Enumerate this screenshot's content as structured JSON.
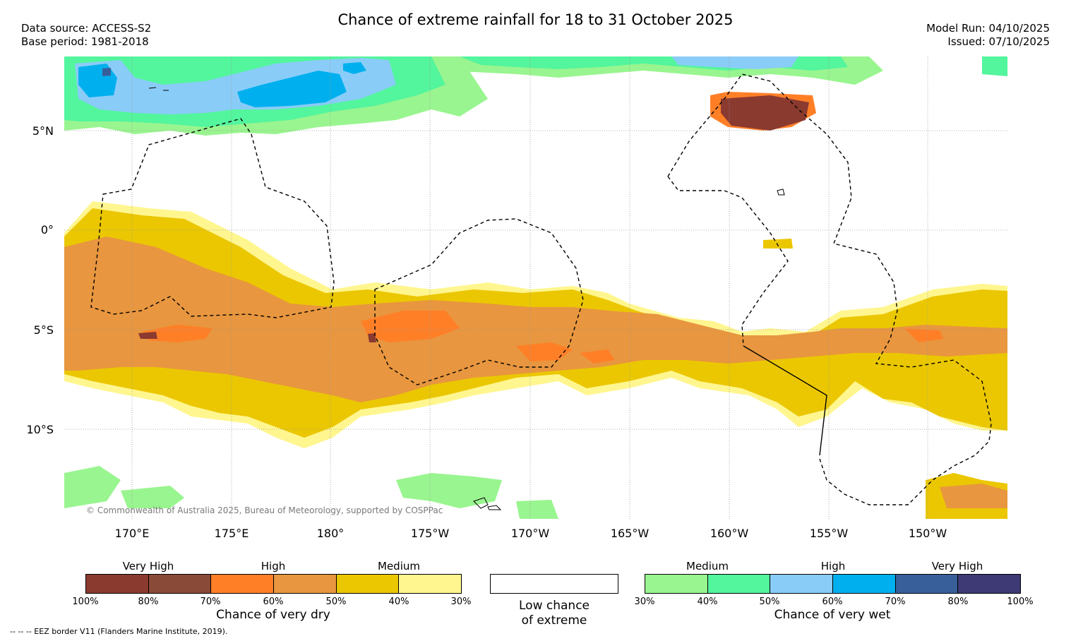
{
  "header": {
    "title": "Chance of extreme rainfall for 18 to 31 October 2025",
    "data_source": "Data source: ACCESS-S2",
    "base_period": "Base period: 1981-2018",
    "model_run": "Model Run: 04/10/2025",
    "issued": "Issued: 07/10/2025"
  },
  "map": {
    "lat_labels": [
      "5°N",
      "0°",
      "5°S",
      "10°S"
    ],
    "lon_labels": [
      "170°E",
      "175°E",
      "180°",
      "175°W",
      "170°W",
      "165°W",
      "160°W",
      "155°W",
      "150°W"
    ],
    "copyright": "© Commonwealth of Australia 2025, Bureau of Meteorology, supported by COSPPac",
    "eez_note": "--  --  -- EEZ border V11 (Flanders Marine Institute, 2019)."
  },
  "legend": {
    "dry": {
      "levels": [
        "Very High",
        "High",
        "Medium"
      ],
      "ticks": [
        "100%",
        "80%",
        "70%",
        "60%",
        "50%",
        "40%",
        "30%"
      ],
      "colors": [
        "#8b3a30",
        "#8a4a38",
        "#ff7f27",
        "#e8963f",
        "#ebc701",
        "#fff68f"
      ],
      "caption": "Chance of very dry"
    },
    "low": {
      "caption_line1": "Low chance",
      "caption_line2": "of extreme"
    },
    "wet": {
      "levels": [
        "Medium",
        "High",
        "Very High"
      ],
      "ticks": [
        "30%",
        "40%",
        "50%",
        "60%",
        "70%",
        "80%",
        "100%"
      ],
      "colors": [
        "#99f58f",
        "#53f59d",
        "#8accf8",
        "#00b0ee",
        "#395f9a",
        "#3d3a75"
      ],
      "caption": "Chance of very wet"
    }
  }
}
